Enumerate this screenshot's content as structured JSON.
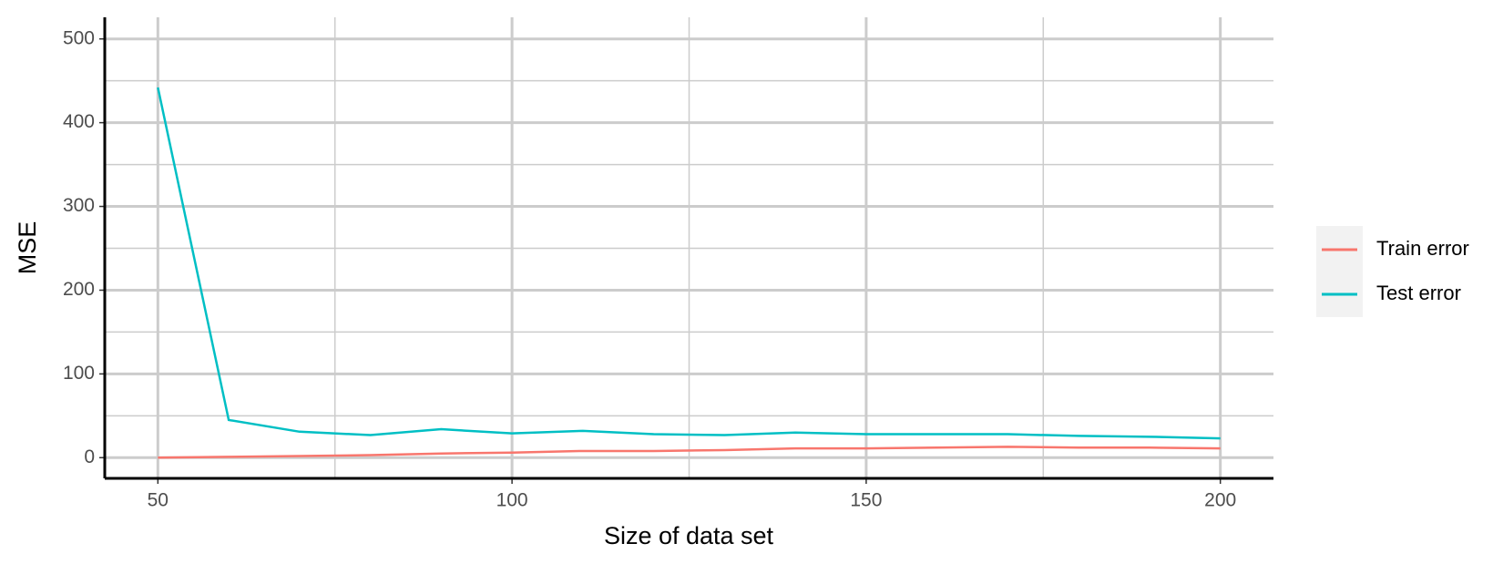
{
  "chart_data": {
    "type": "line",
    "x_label": "Size of data set",
    "y_label": "MSE",
    "x": [
      50,
      60,
      70,
      80,
      90,
      100,
      110,
      120,
      130,
      140,
      150,
      160,
      170,
      180,
      190,
      200
    ],
    "series": [
      {
        "name": "Train error",
        "color": "#f8766d",
        "values": [
          0,
          1,
          2,
          3,
          5,
          6,
          8,
          8,
          9,
          11,
          11,
          12,
          13,
          12,
          12,
          11
        ]
      },
      {
        "name": "Test error",
        "color": "#00bfc4",
        "values": [
          442,
          45,
          31,
          27,
          34,
          29,
          32,
          28,
          27,
          30,
          28,
          28,
          28,
          26,
          25,
          23
        ]
      }
    ],
    "xlim": [
      42.5,
      207.5
    ],
    "ylim": [
      -24.7,
      525.8
    ],
    "xticks": [
      50,
      100,
      150,
      200
    ],
    "yticks": [
      0,
      100,
      200,
      300,
      400,
      500
    ],
    "x_minor_ticks": [
      75,
      125,
      175
    ],
    "y_minor_ticks": [
      50,
      150,
      250,
      350,
      450
    ],
    "grid": true,
    "legend": "right"
  }
}
